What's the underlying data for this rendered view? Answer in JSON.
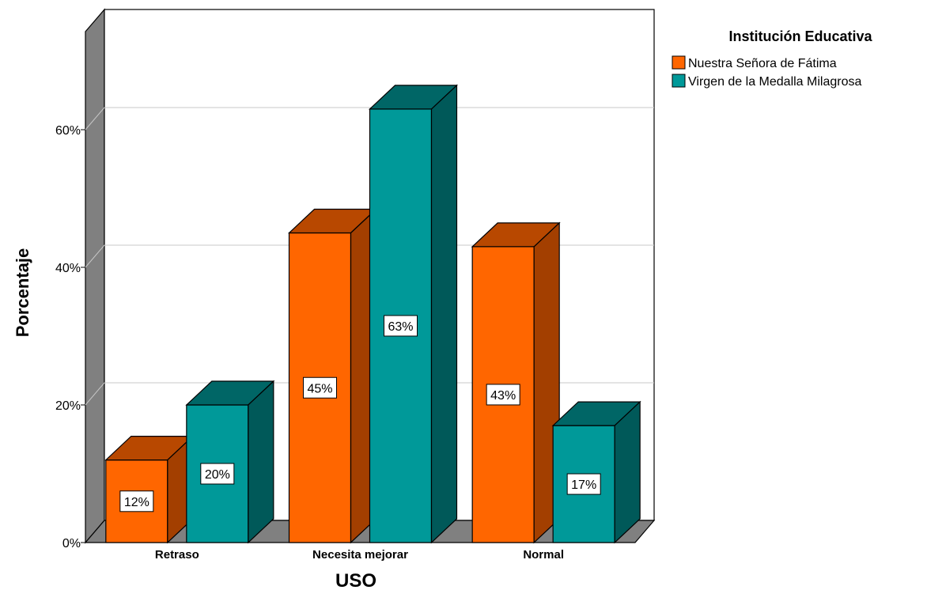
{
  "chart_data": {
    "type": "bar",
    "three_d": true,
    "xlabel": "USO",
    "ylabel": "Porcentaje",
    "categories": [
      "Retraso",
      "Necesita mejorar",
      "Normal"
    ],
    "ylim": [
      0,
      75
    ],
    "yticks": [
      0,
      20,
      40,
      60
    ],
    "ytick_labels": [
      "0%",
      "20%",
      "40%",
      "60%"
    ],
    "grid": true,
    "legend": {
      "title": "Institución Educativa",
      "position": "top-right",
      "entries": [
        "Nuestra Señora de Fátima",
        "Virgen de la Medalla Milagrosa"
      ]
    },
    "series": [
      {
        "name": "Nuestra Señora de Fátima",
        "values": [
          12,
          45,
          43
        ],
        "labels": [
          "12%",
          "45%",
          "43%"
        ],
        "color": "#ff6600",
        "top_color": "#b84800",
        "side_color": "#a33f00"
      },
      {
        "name": "Virgen de la Medalla Milagrosa",
        "values": [
          20,
          63,
          17
        ],
        "labels": [
          "20%",
          "63%",
          "17%"
        ],
        "color": "#009999",
        "top_color": "#006666",
        "side_color": "#005959"
      }
    ],
    "wall_color": "#808080",
    "floor_color": "#808080"
  }
}
